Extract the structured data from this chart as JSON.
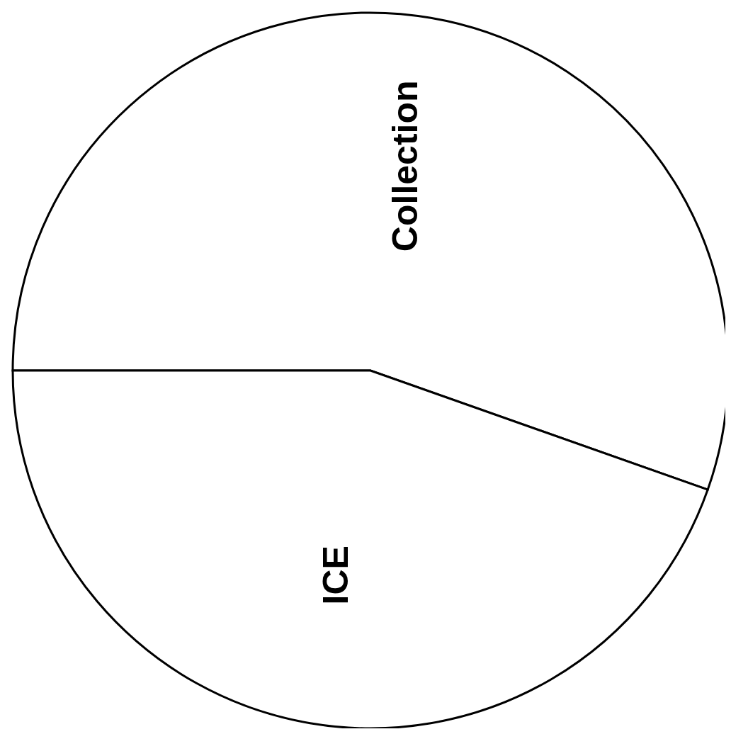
{
  "chart_data": {
    "type": "pie",
    "categories": [
      "Collection",
      "ICE"
    ],
    "values": [
      55.4,
      44.6
    ],
    "colors": [
      "#ffffff",
      "#ffffff"
    ]
  }
}
